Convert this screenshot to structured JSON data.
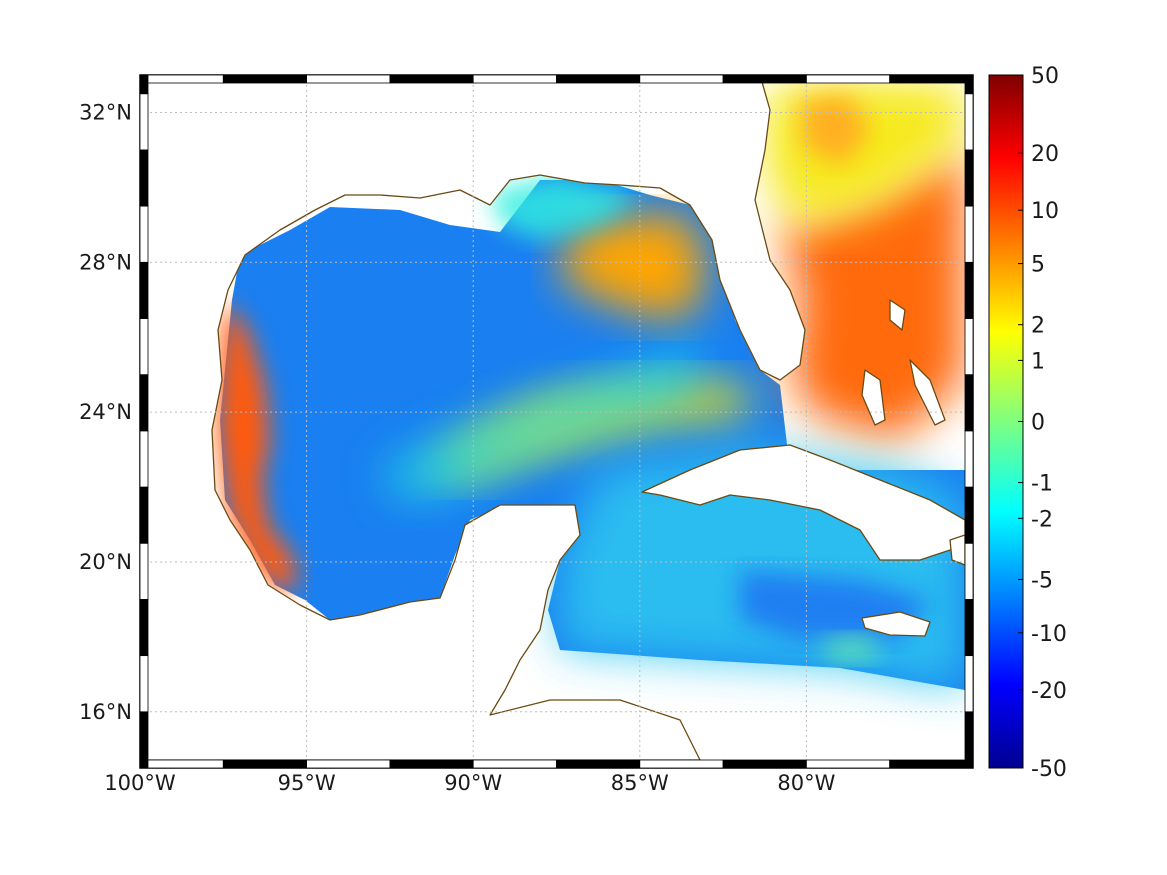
{
  "chart_data": {
    "type": "heatmap",
    "title": "",
    "projection": "geographic",
    "lon_range": [
      -100,
      -75
    ],
    "lat_range": [
      14.5,
      33
    ],
    "x_ticks": [
      {
        "value": -100,
        "label": "100°W"
      },
      {
        "value": -95,
        "label": "95°W"
      },
      {
        "value": -90,
        "label": "90°W"
      },
      {
        "value": -85,
        "label": "85°W"
      },
      {
        "value": -80,
        "label": "80°W"
      }
    ],
    "y_ticks": [
      {
        "value": 32,
        "label": "32°N"
      },
      {
        "value": 28,
        "label": "28°N"
      },
      {
        "value": 24,
        "label": "24°N"
      },
      {
        "value": 20,
        "label": "20°N"
      },
      {
        "value": 16,
        "label": "16°N"
      }
    ],
    "grid": true,
    "colorbar": {
      "placement": "right",
      "colormap": "jet",
      "scale": "symmetric-log",
      "range": [
        -50,
        50
      ],
      "ticks": [
        {
          "value": 50,
          "label": "50"
        },
        {
          "value": 20,
          "label": "20"
        },
        {
          "value": 10,
          "label": "10"
        },
        {
          "value": 5,
          "label": "5"
        },
        {
          "value": 2,
          "label": "2"
        },
        {
          "value": 1,
          "label": "1"
        },
        {
          "value": 0,
          "label": "0"
        },
        {
          "value": -1,
          "label": "-1"
        },
        {
          "value": -2,
          "label": "-2"
        },
        {
          "value": -5,
          "label": "-5"
        },
        {
          "value": -10,
          "label": "-10"
        },
        {
          "value": -20,
          "label": "-20"
        },
        {
          "value": -50,
          "label": "-50"
        }
      ]
    },
    "regions": [
      {
        "name": "western-gulf-coastal-band",
        "approx_value": 10
      },
      {
        "name": "central-western-gulf",
        "approx_value": -5
      },
      {
        "name": "northeastern-gulf-shelf",
        "approx_value": 3
      },
      {
        "name": "atlantic-east-of-florida",
        "approx_value": 8
      },
      {
        "name": "caribbean-sea",
        "approx_value": -3
      }
    ],
    "colors": {
      "coastline": "#6b4a12",
      "land": "#ffffff",
      "grid": "#c8c8c8",
      "frame": "#000000"
    }
  }
}
